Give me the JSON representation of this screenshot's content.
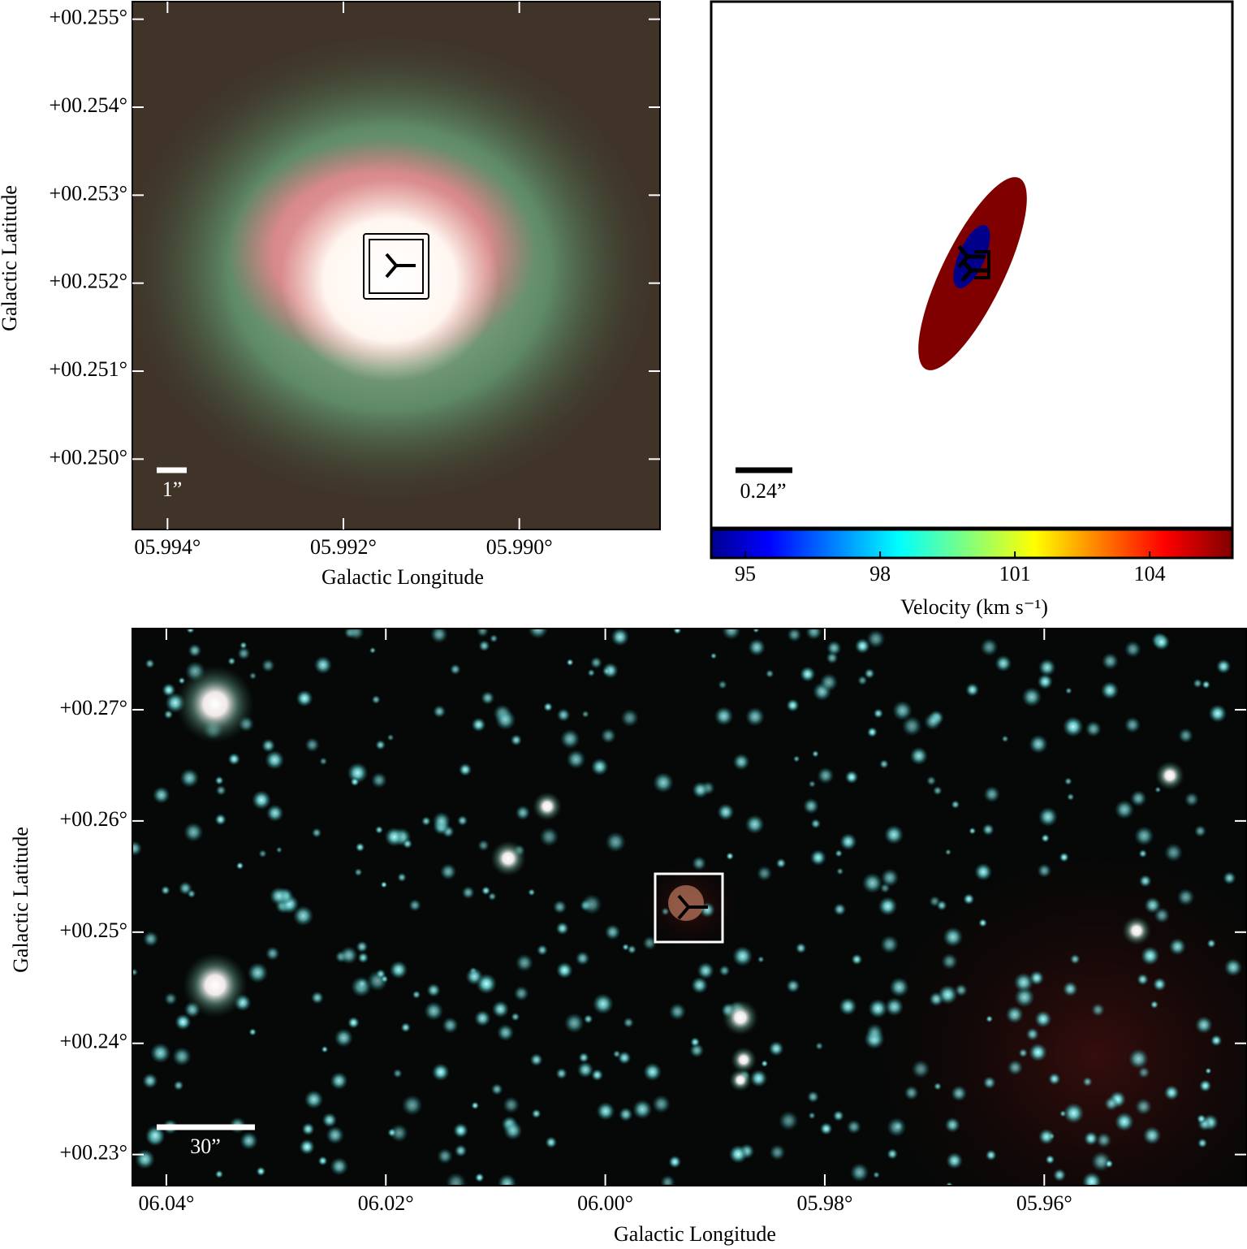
{
  "chart_data": [
    {
      "type": "image",
      "xlabel": "Galactic Longitude",
      "ylabel": "Galactic Latitude",
      "xlim": [
        5.9944,
        5.9884
      ],
      "ylim": [
        0.2492,
        0.2552
      ],
      "xticks": [
        {
          "value": 5.994,
          "label": "05.994°"
        },
        {
          "value": 5.992,
          "label": "05.992°"
        },
        {
          "value": 5.99,
          "label": "05.990°"
        }
      ],
      "yticks": [
        {
          "value": 0.25,
          "label": "+00.250°"
        },
        {
          "value": 0.251,
          "label": "+00.251°"
        },
        {
          "value": 0.252,
          "label": "+00.252°"
        },
        {
          "value": 0.253,
          "label": "+00.253°"
        },
        {
          "value": 0.254,
          "label": "+00.254°"
        },
        {
          "value": 0.255,
          "label": "+00.255°"
        }
      ],
      "scale_label": "1”"
    },
    {
      "type": "ellipse",
      "scale_label": "0.24”",
      "colorbar_label": "Velocity (km s⁻¹)",
      "clim": [
        94.24,
        105.84
      ],
      "cticks": [
        95,
        98,
        101,
        104
      ],
      "ellipses": [
        {
          "value": 105.5,
          "color": "#800000"
        },
        {
          "value": 94.5,
          "color": "#00008b"
        }
      ]
    },
    {
      "type": "image",
      "xlabel": "Galactic Longitude",
      "ylabel": "Galactic Latitude",
      "xlim": [
        6.0431,
        5.9416
      ],
      "ylim": [
        0.2272,
        0.2773
      ],
      "xticks": [
        {
          "value": 6.04,
          "label": "06.04°"
        },
        {
          "value": 6.02,
          "label": "06.02°"
        },
        {
          "value": 6.0,
          "label": "06.00°"
        },
        {
          "value": 5.98,
          "label": "05.98°"
        },
        {
          "value": 5.96,
          "label": "05.96°"
        }
      ],
      "yticks": [
        {
          "value": 0.23,
          "label": "+00.23°"
        },
        {
          "value": 0.24,
          "label": "+00.24°"
        },
        {
          "value": 0.25,
          "label": "+00.25°"
        },
        {
          "value": 0.26,
          "label": "+00.26°"
        },
        {
          "value": 0.27,
          "label": "+00.27°"
        }
      ],
      "scale_label": "30”"
    }
  ]
}
